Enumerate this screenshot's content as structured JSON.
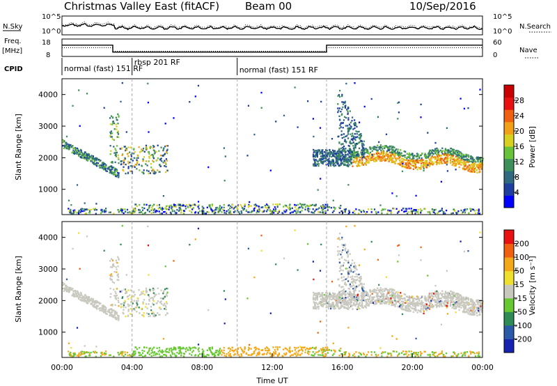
{
  "header": {
    "radar": "Christmas Valley East (fitACF)",
    "beam": "Beam 00",
    "date": "10/Sep/2016"
  },
  "chart_data": [
    {
      "type": "line",
      "panel": "noise-search",
      "left_label": "N.Sky",
      "right_label": "N.Search",
      "left_ticks": [
        "10^5",
        "10^0"
      ],
      "right_ticks": [
        "10^5",
        "10^0"
      ]
    },
    {
      "type": "line",
      "panel": "frequency-nave",
      "left_label_top": "Freq.",
      "left_label_bottom": "[MHz]",
      "right_label": "Nave",
      "left_ticks": [
        "18",
        "8"
      ],
      "right_ticks": [
        "60",
        "0"
      ],
      "freq_steps": [
        {
          "x": [
            0.0,
            2.9
          ],
          "y": 14.5
        },
        {
          "x": [
            2.9,
            15.1
          ],
          "y": 10.5
        },
        {
          "x": [
            15.1,
            24.0
          ],
          "y": 14.5
        }
      ],
      "nave_level_hi": 30,
      "nave_level_lo": 18
    },
    {
      "type": "table",
      "panel": "cpid",
      "label": "CPID",
      "segments": [
        {
          "text": "normal (fast) 151 RF",
          "start": 0.0,
          "end": 4.0
        },
        {
          "text": "rbsp 201 RF",
          "start": 4.0,
          "end": 10.0
        },
        {
          "text": "normal (fast) 151 RF",
          "start": 10.0,
          "end": 24.0
        }
      ]
    },
    {
      "type": "heatmap",
      "panel": "power",
      "ylabel": "Slant Range [km]",
      "colorbar_label": "Power [dB]",
      "ylim": [
        200,
        4500
      ],
      "yticks": [
        1000,
        2000,
        3000,
        4000
      ],
      "colorbar_ticks": [
        "28",
        "24",
        "20",
        "16",
        "12",
        "8",
        "4"
      ],
      "colorbar_range": [
        0,
        30
      ]
    },
    {
      "type": "heatmap",
      "panel": "velocity",
      "ylabel": "Slant Range [km]",
      "colorbar_label": "Velocity [m s⁻¹]",
      "ylim": [
        200,
        4500
      ],
      "yticks": [
        1000,
        2000,
        3000,
        4000
      ],
      "colorbar_ticks": [
        "200",
        "100",
        "50",
        "15",
        "-15",
        "-50",
        "-100",
        "-200"
      ],
      "xlabel": "Time UT",
      "xticks": [
        "00:00",
        "04:00",
        "08:00",
        "12:00",
        "16:00",
        "20:00",
        "00:00"
      ],
      "xlim": [
        0,
        24
      ]
    }
  ],
  "colors": {
    "power_scale": [
      "#0000ff",
      "#1f3fa0",
      "#2f6a80",
      "#3f8f5a",
      "#68c23a",
      "#d8d020",
      "#f2a018",
      "#ef6010",
      "#e81010",
      "#c80000"
    ],
    "velocity_scale": [
      "#1822b0",
      "#2a5aa8",
      "#2f8a55",
      "#67c832",
      "#c8c8be",
      "#efe030",
      "#f2a818",
      "#ef6010",
      "#e81010"
    ],
    "ground_scatter": "#c8c8be"
  }
}
